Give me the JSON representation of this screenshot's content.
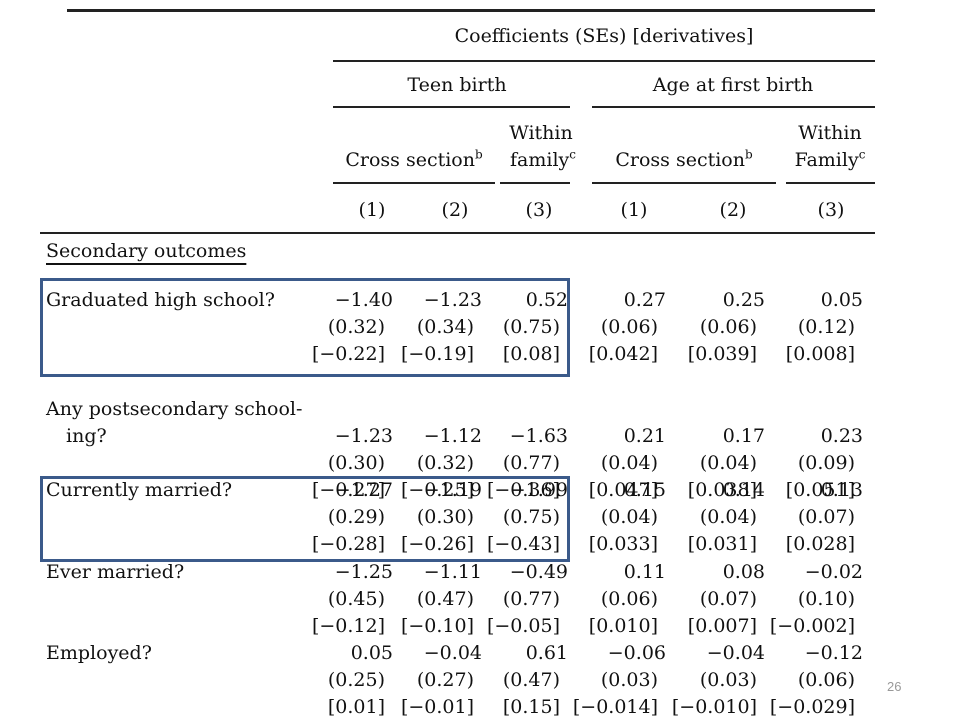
{
  "header": {
    "title": "Coefficients (SEs) [derivatives]",
    "group_teen": "Teen birth",
    "group_age": "Age at first birth",
    "cross_section": "Cross section",
    "cross_section_sup": "b",
    "within_line1": "Within",
    "within_family_lower": "family",
    "within_family_upper": "Family",
    "within_sup": "c",
    "col_nums": [
      "(1)",
      "(2)",
      "(3)",
      "(1)",
      "(2)",
      "(3)"
    ]
  },
  "section_title": "Secondary outcomes",
  "rows": [
    {
      "label": [
        "Graduated high school?"
      ],
      "coef": [
        "−1.40",
        "−1.23",
        "0.52",
        "0.27",
        "0.25",
        "0.05"
      ],
      "se": [
        "(0.32)",
        "(0.34)",
        "(0.75)",
        "(0.06)",
        "(0.06)",
        "(0.12)"
      ],
      "deriv": [
        "[−0.22]",
        "[−0.19]",
        "[0.08]",
        "[0.042]",
        "[0.039]",
        "[0.008]"
      ]
    },
    {
      "label": [
        "Any postsecondary school-",
        "ing?"
      ],
      "coef": [
        "−1.23",
        "−1.12",
        "−1.63",
        "0.21",
        "0.17",
        "0.23"
      ],
      "se": [
        "(0.30)",
        "(0.32)",
        "(0.77)",
        "(0.04)",
        "(0.04)",
        "(0.09)"
      ],
      "deriv": [
        "[−0.27]",
        "[−0.25]",
        "[−0.36]",
        "[0.047]",
        "[0.038]",
        "[0.051]"
      ]
    },
    {
      "label": [
        "Currently married?"
      ],
      "coef": [
        "−1.27",
        "−1.19",
        "−1.99",
        "0.15",
        "0.14",
        "0.13"
      ],
      "se": [
        "(0.29)",
        "(0.30)",
        "(0.75)",
        "(0.04)",
        "(0.04)",
        "(0.07)"
      ],
      "deriv": [
        "[−0.28]",
        "[−0.26]",
        "[−0.43]",
        "[0.033]",
        "[0.031]",
        "[0.028]"
      ]
    },
    {
      "label": [
        "Ever married?"
      ],
      "coef": [
        "−1.25",
        "−1.11",
        "−0.49",
        "0.11",
        "0.08",
        "−0.02"
      ],
      "se": [
        "(0.45)",
        "(0.47)",
        "(0.77)",
        "(0.06)",
        "(0.07)",
        "(0.10)"
      ],
      "deriv": [
        "[−0.12]",
        "[−0.10]",
        "[−0.05]",
        "[0.010]",
        "[0.007]",
        "[−0.002]"
      ]
    },
    {
      "label": [
        "Employed?"
      ],
      "coef": [
        "0.05",
        "−0.04",
        "0.61",
        "−0.06",
        "−0.04",
        "−0.12"
      ],
      "se": [
        "(0.25)",
        "(0.27)",
        "(0.47)",
        "(0.03)",
        "(0.03)",
        "(0.06)"
      ],
      "deriv": [
        "[0.01]",
        "[−0.01]",
        "[0.15]",
        "[−0.014]",
        "[−0.010]",
        "[−0.029]"
      ]
    }
  ],
  "highlight_color": "#3b5a8a",
  "slide_number": "26"
}
